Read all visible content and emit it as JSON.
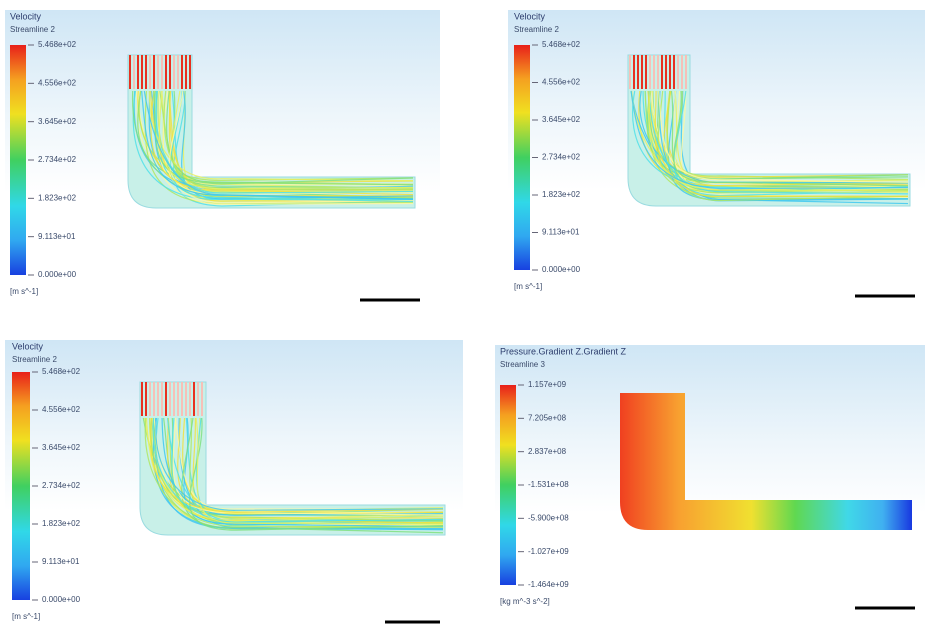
{
  "panels": [
    {
      "title": "Velocity",
      "subtitle": "Streamline 2",
      "legend": [
        "5.468e+02",
        "4.556e+02",
        "3.645e+02",
        "2.734e+02",
        "1.823e+02",
        "9.113e+01",
        "0.000e+00"
      ],
      "units": "[m s^-1]"
    },
    {
      "title": "Velocity",
      "subtitle": "Streamline 2",
      "legend": [
        "5.468e+02",
        "4.556e+02",
        "3.645e+02",
        "2.734e+02",
        "1.823e+02",
        "9.113e+01",
        "0.000e+00"
      ],
      "units": "[m s^-1]"
    },
    {
      "title": "Velocity",
      "subtitle": "Streamline 2",
      "legend": [
        "5.468e+02",
        "4.556e+02",
        "3.645e+02",
        "2.734e+02",
        "1.823e+02",
        "9.113e+01",
        "0.000e+00"
      ],
      "units": "[m s^-1]"
    },
    {
      "title": "Pressure.Gradient Z.Gradient Z",
      "subtitle": "Streamline 3",
      "legend": [
        "1.157e+09",
        "7.205e+08",
        "2.837e+08",
        "-1.531e+08",
        "-5.900e+08",
        "-1.027e+09",
        "-1.464e+09"
      ],
      "units": "[kg m^-3 s^-2]"
    }
  ]
}
